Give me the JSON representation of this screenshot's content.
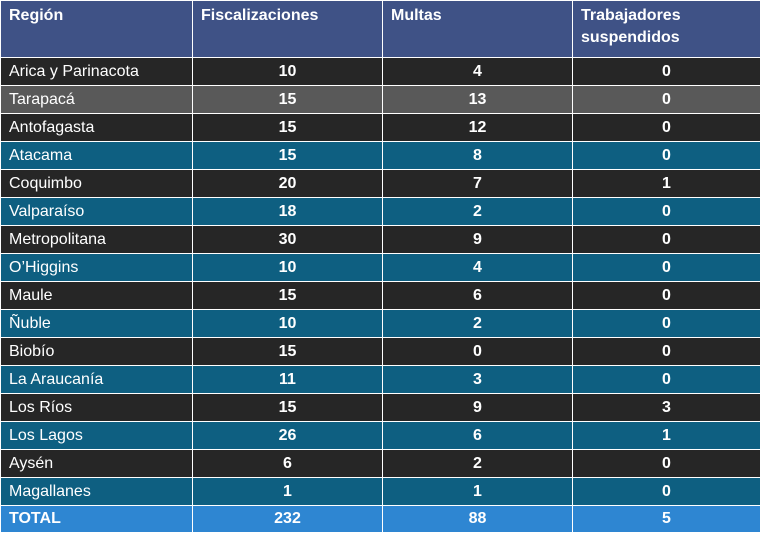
{
  "table": {
    "headers": [
      "Región",
      "Fiscalizaciones",
      "Multas",
      "Trabajadores suspendidos"
    ],
    "rows": [
      {
        "region": "Arica y Parinacota",
        "fiscalizaciones": "10",
        "multas": "4",
        "suspendidos": "0"
      },
      {
        "region": "Tarapacá",
        "fiscalizaciones": "15",
        "multas": "13",
        "suspendidos": "0"
      },
      {
        "region": "Antofagasta",
        "fiscalizaciones": "15",
        "multas": "12",
        "suspendidos": "0"
      },
      {
        "region": "Atacama",
        "fiscalizaciones": "15",
        "multas": "8",
        "suspendidos": "0"
      },
      {
        "region": "Coquimbo",
        "fiscalizaciones": "20",
        "multas": "7",
        "suspendidos": "1"
      },
      {
        "region": "Valparaíso",
        "fiscalizaciones": "18",
        "multas": "2",
        "suspendidos": "0"
      },
      {
        "region": "Metropolitana",
        "fiscalizaciones": "30",
        "multas": "9",
        "suspendidos": "0"
      },
      {
        "region": "O’Higgins",
        "fiscalizaciones": "10",
        "multas": "4",
        "suspendidos": "0"
      },
      {
        "region": "Maule",
        "fiscalizaciones": "15",
        "multas": "6",
        "suspendidos": "0"
      },
      {
        "region": "Ñuble",
        "fiscalizaciones": "10",
        "multas": "2",
        "suspendidos": "0"
      },
      {
        "region": "Biobío",
        "fiscalizaciones": "15",
        "multas": "0",
        "suspendidos": "0"
      },
      {
        "region": "La Araucanía",
        "fiscalizaciones": "11",
        "multas": "3",
        "suspendidos": "0"
      },
      {
        "region": "Los Ríos",
        "fiscalizaciones": "15",
        "multas": "9",
        "suspendidos": "3"
      },
      {
        "region": "Los Lagos",
        "fiscalizaciones": "26",
        "multas": "6",
        "suspendidos": "1"
      },
      {
        "region": "Aysén",
        "fiscalizaciones": "6",
        "multas": "2",
        "suspendidos": "0"
      },
      {
        "region": "Magallanes",
        "fiscalizaciones": "1",
        "multas": "1",
        "suspendidos": "0"
      }
    ],
    "total": {
      "region": "TOTAL",
      "fiscalizaciones": "232",
      "multas": "88",
      "suspendidos": "5"
    }
  },
  "colors": {
    "header": "#3f5286",
    "row_dark": "#262626",
    "row_gray": "#595959",
    "row_teal": "#0e5f81",
    "total": "#2e86d2"
  }
}
